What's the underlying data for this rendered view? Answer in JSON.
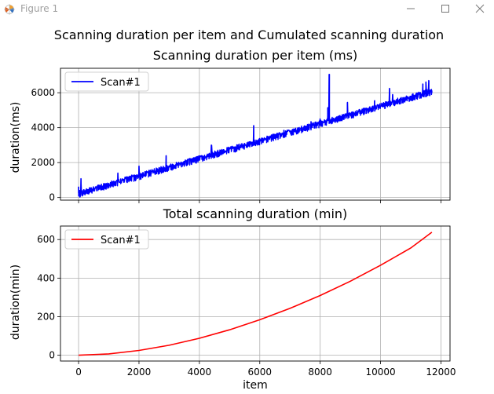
{
  "window": {
    "title": "Figure 1",
    "icon": "matplotlib-figure-icon",
    "controls": [
      "minimize-icon",
      "maximize-icon",
      "close-icon"
    ]
  },
  "figure": {
    "suptitle": "Scanning duration per item and Cumulated scanning duration"
  },
  "chart_data": [
    {
      "type": "line",
      "title": "Scanning duration per item (ms)",
      "xlabel": "",
      "ylabel": "duration(ms)",
      "xlim": [
        -600,
        12300
      ],
      "ylim": [
        -150,
        7400
      ],
      "xticks": [
        0,
        2000,
        4000,
        6000,
        8000,
        10000,
        12000
      ],
      "yticks": [
        0,
        2000,
        4000,
        6000
      ],
      "ytick_labels": [
        "0",
        "2000",
        "4000",
        "6000"
      ],
      "grid": true,
      "legend": "top-left",
      "series": [
        {
          "name": "Scan#1",
          "color": "#0000ff",
          "trend": {
            "x": [
              0,
              11700
            ],
            "y": [
              250,
              6100
            ]
          },
          "spikes": [
            {
              "x": 0,
              "y": 620
            },
            {
              "x": 80,
              "y": 1080
            },
            {
              "x": 1300,
              "y": 1400
            },
            {
              "x": 2000,
              "y": 1800
            },
            {
              "x": 2900,
              "y": 2400
            },
            {
              "x": 4400,
              "y": 3000
            },
            {
              "x": 5800,
              "y": 4120
            },
            {
              "x": 6800,
              "y": 3850
            },
            {
              "x": 7700,
              "y": 4350
            },
            {
              "x": 8000,
              "y": 4500
            },
            {
              "x": 8250,
              "y": 5150
            },
            {
              "x": 8300,
              "y": 7050
            },
            {
              "x": 8900,
              "y": 5450
            },
            {
              "x": 9800,
              "y": 5550
            },
            {
              "x": 10300,
              "y": 6250
            },
            {
              "x": 10400,
              "y": 5900
            },
            {
              "x": 11400,
              "y": 6500
            },
            {
              "x": 11500,
              "y": 6620
            },
            {
              "x": 11600,
              "y": 6700
            }
          ]
        }
      ]
    },
    {
      "type": "line",
      "title": "Total scanning duration (min)",
      "xlabel": "item",
      "ylabel": "duration(min)",
      "xlim": [
        -600,
        12300
      ],
      "ylim": [
        -30,
        670
      ],
      "xticks": [
        0,
        2000,
        4000,
        6000,
        8000,
        10000,
        12000
      ],
      "xtick_labels": [
        "0",
        "2000",
        "4000",
        "6000",
        "8000",
        "10000",
        "12000"
      ],
      "yticks": [
        0,
        200,
        400,
        600
      ],
      "ytick_labels": [
        "0",
        "200",
        "400",
        "600"
      ],
      "grid": true,
      "legend": "top-left",
      "series": [
        {
          "name": "Scan#1",
          "color": "#ff0000",
          "x": [
            0,
            1000,
            2000,
            3000,
            4000,
            5000,
            6000,
            7000,
            8000,
            9000,
            10000,
            11000,
            11700
          ],
          "y": [
            0,
            7,
            25,
            52,
            88,
            132,
            184,
            243,
            310,
            384,
            467,
            556,
            638
          ]
        }
      ]
    }
  ]
}
